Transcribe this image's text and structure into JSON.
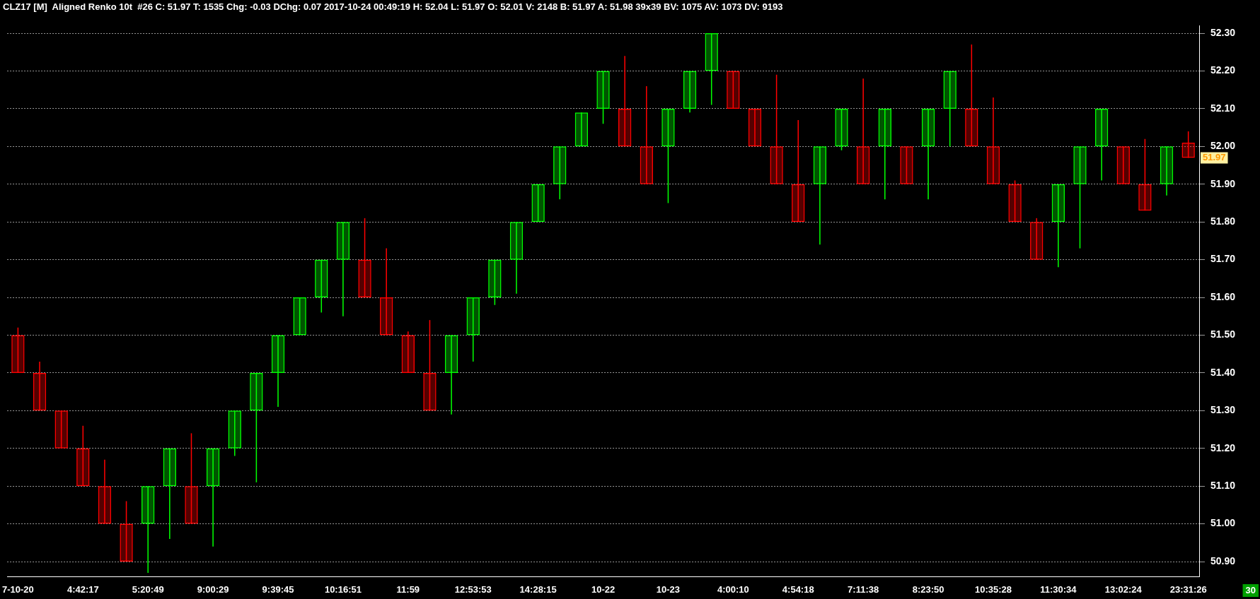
{
  "chart_data": {
    "type": "candlestick",
    "title": "CLZ17 [M]  Aligned Renko 10t  #26 C: 51.97 T: 1535 Chg: -0.03 DChg: 0.07 2017-10-24 00:49:19 H: 52.04 L: 51.97 O: 52.01 V: 2148 B: 51.97 A: 51.98 39x39 BV: 1075 AV: 1073 DV: 9193",
    "categories": [
      "7-10-20",
      null,
      null,
      "4:42:17",
      null,
      null,
      "5:20:49",
      null,
      null,
      "9:00:29",
      null,
      null,
      "9:39:45",
      null,
      null,
      "10:16:51",
      null,
      null,
      "11:59",
      null,
      null,
      "12:53:53",
      null,
      null,
      "14:28:15",
      null,
      null,
      "10-22",
      null,
      null,
      "10-23",
      null,
      null,
      "4:00:10",
      null,
      null,
      "4:54:18",
      null,
      null,
      "7:11:38",
      null,
      null,
      "8:23:50",
      null,
      null,
      "10:35:28",
      null,
      null,
      "11:30:34",
      null,
      null,
      "13:02:24",
      null,
      null,
      "23:31:26"
    ],
    "ohlc": [
      [
        51.5,
        51.52,
        51.4,
        51.4
      ],
      [
        51.4,
        51.43,
        51.3,
        51.3
      ],
      [
        51.3,
        51.3,
        51.2,
        51.2
      ],
      [
        51.2,
        51.26,
        51.1,
        51.1
      ],
      [
        51.1,
        51.17,
        51.0,
        51.0
      ],
      [
        51.0,
        51.06,
        50.9,
        50.9
      ],
      [
        51.0,
        51.1,
        50.87,
        51.1
      ],
      [
        51.1,
        51.2,
        50.96,
        51.2
      ],
      [
        51.1,
        51.24,
        51.0,
        51.0
      ],
      [
        51.1,
        51.2,
        50.94,
        51.2
      ],
      [
        51.2,
        51.3,
        51.18,
        51.3
      ],
      [
        51.3,
        51.4,
        51.11,
        51.4
      ],
      [
        51.4,
        51.5,
        51.31,
        51.5
      ],
      [
        51.5,
        51.6,
        51.5,
        51.6
      ],
      [
        51.6,
        51.7,
        51.56,
        51.7
      ],
      [
        51.7,
        51.8,
        51.55,
        51.8
      ],
      [
        51.7,
        51.81,
        51.6,
        51.6
      ],
      [
        51.6,
        51.73,
        51.5,
        51.5
      ],
      [
        51.5,
        51.51,
        51.4,
        51.4
      ],
      [
        51.4,
        51.54,
        51.3,
        51.3
      ],
      [
        51.4,
        51.5,
        51.29,
        51.5
      ],
      [
        51.5,
        51.6,
        51.43,
        51.6
      ],
      [
        51.6,
        51.7,
        51.58,
        51.7
      ],
      [
        51.7,
        51.8,
        51.61,
        51.8
      ],
      [
        51.8,
        51.9,
        51.8,
        51.9
      ],
      [
        51.9,
        52.0,
        51.86,
        52.0
      ],
      [
        52.0,
        52.09,
        52.0,
        52.09
      ],
      [
        52.1,
        52.2,
        52.06,
        52.2
      ],
      [
        52.1,
        52.24,
        52.0,
        52.0
      ],
      [
        52.0,
        52.16,
        51.9,
        51.9
      ],
      [
        52.0,
        52.1,
        51.85,
        52.1
      ],
      [
        52.1,
        52.2,
        52.09,
        52.2
      ],
      [
        52.2,
        52.3,
        52.11,
        52.3
      ],
      [
        52.2,
        52.2,
        52.1,
        52.1
      ],
      [
        52.1,
        52.1,
        52.0,
        52.0
      ],
      [
        52.0,
        52.19,
        51.9,
        51.9
      ],
      [
        51.9,
        52.07,
        51.8,
        51.8
      ],
      [
        51.9,
        52.0,
        51.74,
        52.0
      ],
      [
        52.0,
        52.1,
        51.99,
        52.1
      ],
      [
        52.0,
        52.18,
        51.9,
        51.9
      ],
      [
        52.0,
        52.1,
        51.86,
        52.1
      ],
      [
        52.0,
        52.0,
        51.9,
        51.9
      ],
      [
        52.0,
        52.1,
        51.86,
        52.1
      ],
      [
        52.1,
        52.2,
        52.0,
        52.2
      ],
      [
        52.1,
        52.27,
        52.0,
        52.0
      ],
      [
        52.0,
        52.13,
        51.9,
        51.9
      ],
      [
        51.9,
        51.91,
        51.8,
        51.8
      ],
      [
        51.8,
        51.81,
        51.7,
        51.7
      ],
      [
        51.8,
        51.9,
        51.68,
        51.9
      ],
      [
        51.9,
        52.0,
        51.73,
        52.0
      ],
      [
        52.0,
        52.1,
        51.91,
        52.1
      ],
      [
        52.0,
        52.0,
        51.9,
        51.9
      ],
      [
        51.9,
        52.02,
        51.83,
        51.83
      ],
      [
        51.9,
        52.0,
        51.87,
        52.0
      ],
      [
        52.01,
        52.04,
        51.97,
        51.97
      ]
    ],
    "colors": [
      "#ff0000",
      "#ff0000",
      "#ff0000",
      "#ff0000",
      "#ff0000",
      "#ff0000",
      "#00ff00",
      "#00ff00",
      "#ff0000",
      "#00ff00",
      "#00ff00",
      "#00ff00",
      "#00ff00",
      "#00ff00",
      "#00ff00",
      "#00ff00",
      "#ff0000",
      "#ff0000",
      "#ff0000",
      "#ff0000",
      "#00ff00",
      "#00ff00",
      "#00ff00",
      "#00ff00",
      "#00ff00",
      "#00ff00",
      "#00ff00",
      "#00ff00",
      "#ff0000",
      "#ff0000",
      "#00ff00",
      "#00ff00",
      "#00ff00",
      "#ff0000",
      "#ff0000",
      "#ff0000",
      "#ff0000",
      "#00ff00",
      "#00ff00",
      "#ff0000",
      "#00ff00",
      "#ff0000",
      "#00ff00",
      "#00ff00",
      "#ff0000",
      "#ff0000",
      "#ff0000",
      "#ff0000",
      "#00ff00",
      "#00ff00",
      "#00ff00",
      "#ff0000",
      "#ff0000",
      "#00ff00",
      "#ff0000"
    ],
    "ylim": [
      50.86,
      52.32
    ],
    "yticks": [
      {
        "value": 50.9,
        "label": "50.90"
      },
      {
        "value": 51.0,
        "label": "51.00"
      },
      {
        "value": 51.1,
        "label": "51.10"
      },
      {
        "value": 51.2,
        "label": "51.20"
      },
      {
        "value": 51.3,
        "label": "51.30"
      },
      {
        "value": 51.4,
        "label": "51.40"
      },
      {
        "value": 51.5,
        "label": "51.50"
      },
      {
        "value": 51.6,
        "label": "51.60"
      },
      {
        "value": 51.7,
        "label": "51.70"
      },
      {
        "value": 51.8,
        "label": "51.80"
      },
      {
        "value": 51.9,
        "label": "51.90"
      },
      {
        "value": 52.0,
        "label": "52.00"
      },
      {
        "value": 52.1,
        "label": "52.10"
      },
      {
        "value": 52.2,
        "label": "52.20"
      },
      {
        "value": 52.3,
        "label": "52.30"
      }
    ],
    "grid": "y",
    "legend": false,
    "annotations": [
      "51.97",
      "30"
    ]
  }
}
